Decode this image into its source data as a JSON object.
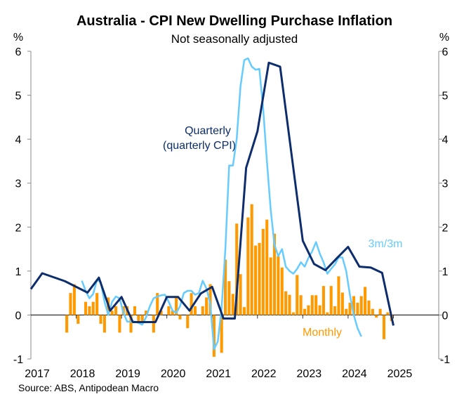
{
  "chart_data": {
    "type": "bar+line",
    "title": "Australia - CPI New Dwelling Purchase Inflation",
    "subtitle": "Not seasonally adjusted",
    "ylabel_left": "%",
    "ylabel_right": "%",
    "ylim": [
      -1,
      6
    ],
    "yticks": [
      -1,
      0,
      1,
      2,
      3,
      4,
      5,
      6
    ],
    "xlim": [
      "2017-01",
      "2026-01"
    ],
    "xticks": [
      "2017",
      "2018",
      "2019",
      "2020",
      "2021",
      "2022",
      "2023",
      "2024",
      "2025"
    ],
    "grid": false,
    "source": "Source: ABS, Antipodean Macro",
    "colors": {
      "monthly": "#FF9900",
      "quarterly": "#0D2D6C",
      "3m3m": "#66CCFF"
    },
    "annotations": {
      "quarterly": [
        "Quarterly",
        "(quarterly CPI)"
      ],
      "3m3m": "3m/3m",
      "monthly": "Monthly"
    },
    "series": [
      {
        "name": "Monthly",
        "type": "bar",
        "start": "2017-10",
        "values": [
          -0.4,
          0.5,
          0.7,
          -0.2,
          null,
          0.3,
          0.2,
          0.3,
          0.5,
          -0.2,
          -0.4,
          0.4,
          0.1,
          0.2,
          -0.4,
          0.2,
          0.2,
          -0.4,
          0.2,
          -0.15,
          -0.15,
          0.1,
          null,
          -0.4,
          0.5,
          0.1,
          null,
          0.2,
          0.1,
          0.4,
          -0.1,
          null,
          -0.3,
          0.5,
          0.2,
          null,
          0.2,
          0.4,
          0.7,
          -0.95,
          null,
          -0.86,
          1.26,
          0.77,
          0.48,
          2.08,
          0.93,
          0.18,
          2.22,
          2.52,
          1.58,
          1.64,
          1.96,
          2.17,
          1.31,
          1.85,
          1.34,
          1.08,
          0.54,
          0.46,
          0.06,
          0.91,
          0.45,
          0.14,
          0.22,
          0.45,
          0.45,
          0.22,
          0.66,
          0.06,
          0.66,
          0.2,
          0.88,
          0.51,
          0.14,
          0.28,
          0.43,
          0.28,
          0.43,
          0.64,
          0.33,
          0.14,
          -0.06,
          0.14,
          -0.55,
          0.06,
          -0.14
        ]
      },
      {
        "name": "Quarterly (quarterly CPI)",
        "type": "line",
        "x": [
          "2016-12",
          "2017-03",
          "2017-06",
          "2017-09",
          "2017-12",
          "2018-03",
          "2018-06",
          "2018-09",
          "2018-12",
          "2019-03",
          "2019-06",
          "2019-09",
          "2019-12",
          "2020-03",
          "2020-06",
          "2020-09",
          "2020-12",
          "2021-03",
          "2021-06",
          "2021-09",
          "2021-12",
          "2022-03",
          "2022-06",
          "2022-09",
          "2022-12",
          "2023-03",
          "2023-06",
          "2023-09",
          "2023-12",
          "2024-03",
          "2024-06",
          "2024-09",
          "2024-12"
        ],
        "values": [
          0.59,
          0.95,
          0.86,
          0.77,
          0.64,
          0.51,
          0.85,
          0.1,
          0.41,
          -0.16,
          -0.16,
          -0.16,
          0.41,
          0.41,
          0.1,
          0.49,
          0.64,
          -0.08,
          -0.08,
          3.35,
          4.18,
          5.74,
          5.65,
          3.67,
          1.69,
          1.16,
          1.02,
          1.29,
          1.55,
          1.1,
          1.08,
          0.96,
          -0.24
        ]
      },
      {
        "name": "3m/3m",
        "type": "line",
        "start": "2018-02",
        "values": [
          0.78,
          0.55,
          0.38,
          0.48,
          0.8,
          0.75,
          0.3,
          0.0,
          0.3,
          0.42,
          0.38,
          0.05,
          -0.15,
          -0.15,
          -0.15,
          -0.18,
          -0.22,
          -0.05,
          0.2,
          0.38,
          0.42,
          0.45,
          0.46,
          0.3,
          0.1,
          0.05,
          0.2,
          0.5,
          0.55,
          0.55,
          0.46,
          0.5,
          0.78,
          0.6,
          0.26,
          -0.78,
          -0.6,
          0.15,
          1.5,
          3.4,
          3.4,
          4.0,
          5.2,
          5.8,
          5.84,
          5.65,
          5.58,
          5.6,
          4.7,
          3.5,
          2.4,
          1.6,
          1.34,
          1.5,
          1.1,
          1.0,
          0.94,
          1.05,
          1.2,
          1.1,
          1.3,
          1.45,
          1.66,
          1.4,
          1.2,
          0.94,
          1.05,
          1.15,
          1.31,
          1.31,
          1.0,
          0.45,
          0.0,
          -0.3,
          -0.49
        ]
      }
    ]
  }
}
